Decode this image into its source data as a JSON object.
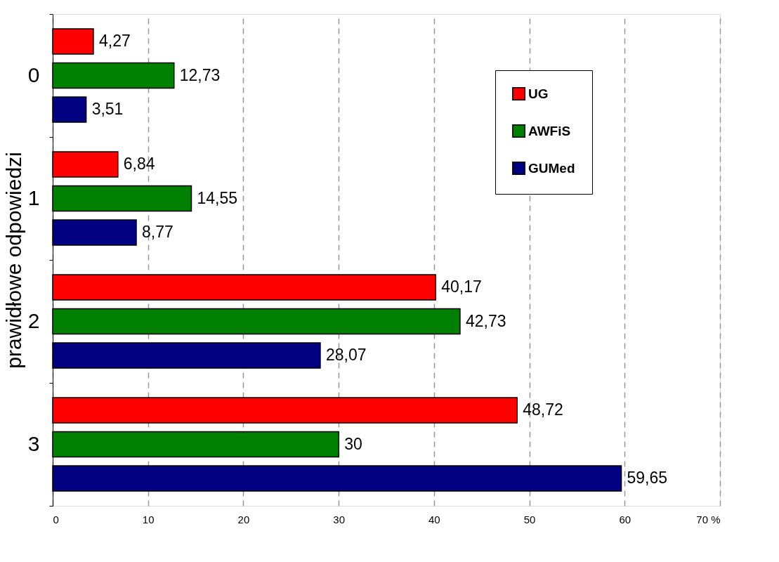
{
  "chart_data": {
    "type": "bar",
    "orientation": "horizontal",
    "ylabel": "prawidłowe odpowiedzi",
    "categories": [
      "0",
      "1",
      "2",
      "3"
    ],
    "series": [
      {
        "name": "UG",
        "color": "#ff0000",
        "values": [
          4.27,
          6.84,
          40.17,
          48.72
        ],
        "value_labels": [
          "4,27",
          "6,84",
          "40,17",
          "48,72"
        ]
      },
      {
        "name": "AWFiS",
        "color": "#008000",
        "values": [
          12.73,
          14.55,
          42.73,
          30
        ],
        "value_labels": [
          "12,73",
          "14,55",
          "42,73",
          "30"
        ]
      },
      {
        "name": "GUMed",
        "color": "#000080",
        "values": [
          3.51,
          8.77,
          28.07,
          59.65
        ],
        "value_labels": [
          "3,51",
          "8,77",
          "28,07",
          "59,65"
        ]
      }
    ],
    "xlim": [
      0,
      70
    ],
    "xticks": [
      0,
      10,
      20,
      30,
      40,
      50,
      60,
      {
        "value": 70,
        "label": "70 %"
      }
    ],
    "grid": "x",
    "legend": "top right"
  }
}
